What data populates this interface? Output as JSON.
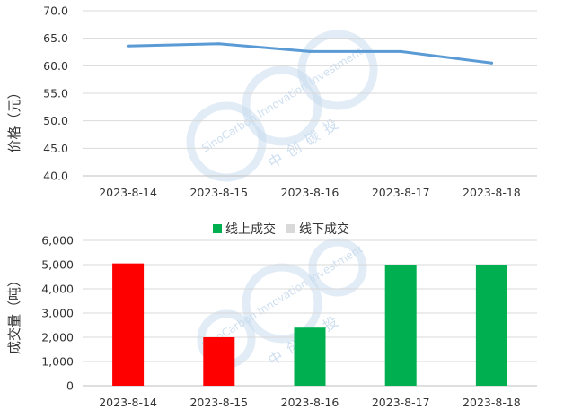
{
  "chart_data": [
    {
      "type": "line",
      "ylabel": "价格（元）",
      "categories": [
        "2023-8-14",
        "2023-8-15",
        "2023-8-16",
        "2023-8-17",
        "2023-8-18"
      ],
      "series": [
        {
          "values": [
            63.6,
            64.0,
            62.6,
            62.6,
            60.5
          ],
          "color": "#5b9bd5"
        }
      ],
      "ylim": [
        40.0,
        70.0
      ],
      "yticks": [
        "40.0",
        "45.0",
        "50.0",
        "55.0",
        "60.0",
        "65.0",
        "70.0"
      ],
      "grid": "horizontal",
      "legend": "none"
    },
    {
      "type": "bar",
      "ylabel": "成交量（吨）",
      "categories": [
        "2023-8-14",
        "2023-8-15",
        "2023-8-16",
        "2023-8-17",
        "2023-8-18"
      ],
      "values": [
        5050,
        2000,
        2400,
        5000,
        5000
      ],
      "bar_colors": [
        "#ff0000",
        "#ff0000",
        "#00b050",
        "#00b050",
        "#00b050"
      ],
      "legend_entries": [
        {
          "name": "线上成交",
          "color": "#00b050"
        },
        {
          "name": "线下成交",
          "color": "#d9d9d9"
        }
      ],
      "ylim": [
        0,
        6000
      ],
      "yticks": [
        "0",
        "1,000",
        "2,000",
        "3,000",
        "4,000",
        "5,000",
        "6,000"
      ],
      "grid": "horizontal",
      "legend": "top"
    }
  ],
  "watermark": {
    "latin": "SinoCarbon Innovation Investment",
    "cn": "中创碳投",
    "color": "#c9dcef"
  }
}
